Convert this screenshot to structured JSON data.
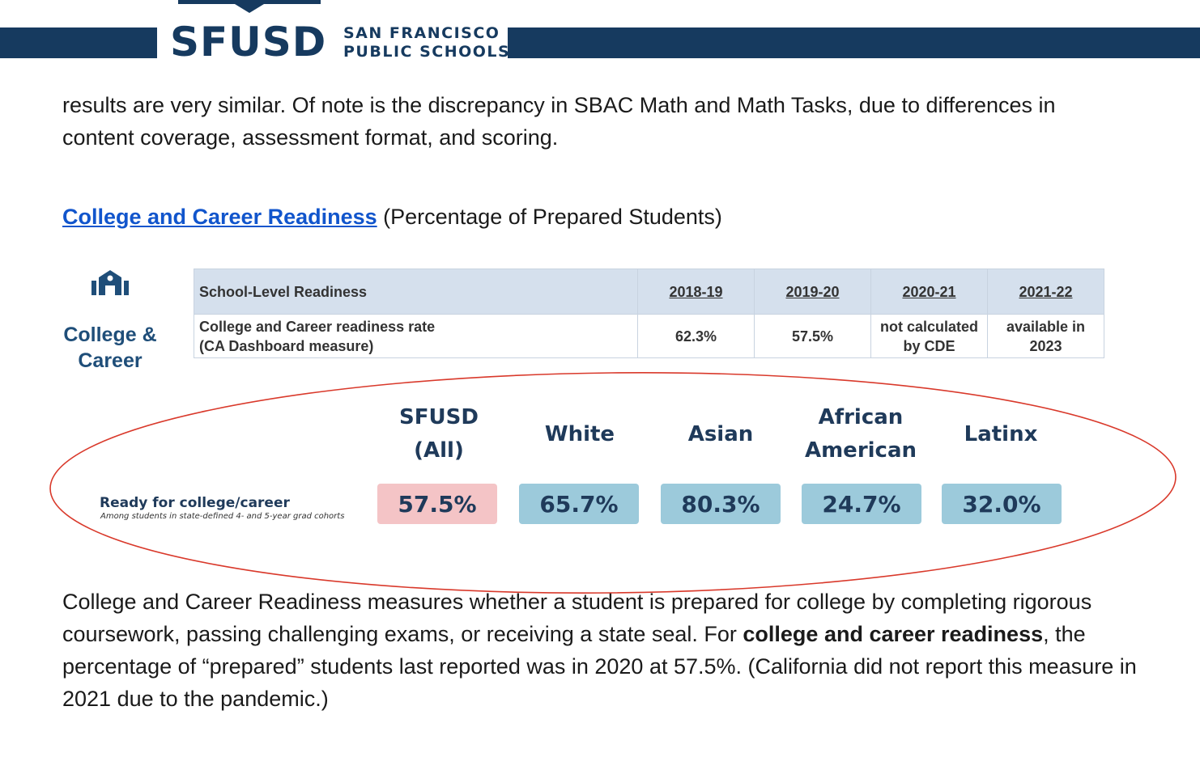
{
  "header": {
    "logo_text": "SFUSD",
    "logo_sub_line1": "SAN FRANCISCO",
    "logo_sub_line2": "PUBLIC SCHOOLS",
    "brand_color": "#163a5f"
  },
  "intro_paragraph": "results are very similar. Of note is the discrepancy in SBAC Math and Math Tasks, due to differences in content coverage, assessment format, and scoring.",
  "section": {
    "link_text": "College and Career Readiness",
    "suffix": " (Percentage of Prepared Students)"
  },
  "icon_block": {
    "icon": "school-building-icon",
    "label_line1": "College &",
    "label_line2": "Career"
  },
  "readiness_table": {
    "header": [
      "School-Level Readiness",
      "2018-19",
      "2019-20",
      "2020-21",
      "2021-22"
    ],
    "row": {
      "label_line1": "College and Career readiness rate",
      "label_line2": "(CA Dashboard measure)",
      "values": [
        {
          "line1": "62.3%",
          "line2": ""
        },
        {
          "line1": "57.5%",
          "line2": ""
        },
        {
          "line1": "not calculated",
          "line2": "by CDE"
        },
        {
          "line1": "available in",
          "line2": "2023"
        }
      ]
    }
  },
  "comparison": {
    "row_label": "Ready for college/career",
    "row_sublabel": "Among students in state-defined 4- and 5-year grad cohorts",
    "groups": [
      {
        "line1": "SFUSD",
        "line2": "(All)",
        "value": "57.5%",
        "color": "#f4c4c6"
      },
      {
        "line1": "White",
        "line2": "",
        "value": "65.7%",
        "color": "#9ccadb"
      },
      {
        "line1": "Asian",
        "line2": "",
        "value": "80.3%",
        "color": "#9ccadb"
      },
      {
        "line1": "African",
        "line2": "American",
        "value": "24.7%",
        "color": "#9ccadb"
      },
      {
        "line1": "Latinx",
        "line2": "",
        "value": "32.0%",
        "color": "#9ccadb"
      }
    ],
    "highlight_color": "#d9392b"
  },
  "closing": {
    "part1": "College and Career Readiness measures whether a student is prepared for college by completing rigorous coursework, passing challenging exams, or receiving a state seal. For ",
    "bold": "college and career readiness",
    "part2": ", the percentage of “prepared” students last reported was in 2020 at 57.5%. (California did not report this measure in 2021 due to the pandemic.)"
  }
}
